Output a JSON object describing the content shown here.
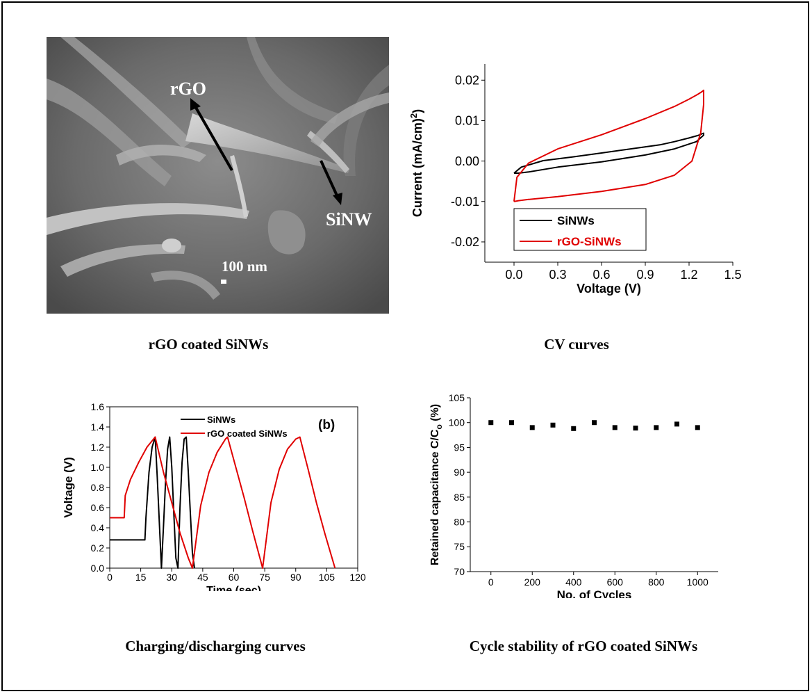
{
  "panels": {
    "sem": {
      "caption": "rGO coated SiNWs",
      "label_rgo": "rGO",
      "label_sinw": "SiNW",
      "scale_label": "100 nm"
    },
    "cv": {
      "caption": "CV curves"
    },
    "gcd": {
      "caption": "Charging/discharging curves"
    },
    "cycle": {
      "caption": "Cycle stability of rGO coated SiNWs"
    }
  },
  "chart_data": [
    {
      "id": "cv",
      "type": "line",
      "xlabel": "Voltage (V)",
      "ylabel": "Current (mA/cm2)",
      "xlim": [
        -0.2,
        1.5
      ],
      "ylim": [
        -0.025,
        0.024
      ],
      "xticks": [
        0.0,
        0.3,
        0.6,
        0.9,
        1.2,
        1.5
      ],
      "xtick_labels": [
        "0.0",
        "0.3",
        "0.6",
        "0.9",
        "1.2",
        "1.5"
      ],
      "yticks": [
        -0.02,
        -0.01,
        0.0,
        0.01,
        0.02
      ],
      "ytick_labels": [
        "-0.02",
        "-0.01",
        "0.00",
        "0.01",
        "0.02"
      ],
      "legend_position": "lower-center",
      "series": [
        {
          "name": "SiNWs",
          "color": "#000000",
          "x": [
            0.0,
            0.05,
            0.2,
            0.4,
            0.6,
            0.8,
            1.0,
            1.1,
            1.2,
            1.26,
            1.3,
            1.3,
            1.25,
            1.1,
            0.9,
            0.6,
            0.3,
            0.1,
            0.03,
            0.0
          ],
          "y": [
            -0.003,
            -0.0015,
            0.0001,
            0.001,
            0.002,
            0.003,
            0.004,
            0.0048,
            0.0057,
            0.0063,
            0.0069,
            0.0064,
            0.0048,
            0.003,
            0.0015,
            -0.0002,
            -0.0015,
            -0.0027,
            -0.003,
            -0.003
          ]
        },
        {
          "name": "rGO-SiNWs",
          "color": "#e00000",
          "x": [
            0.0,
            0.02,
            0.1,
            0.3,
            0.6,
            0.9,
            1.1,
            1.2,
            1.26,
            1.29,
            1.3,
            1.3,
            1.28,
            1.22,
            1.1,
            0.9,
            0.6,
            0.3,
            0.1,
            0.03,
            0.0
          ],
          "y": [
            -0.01,
            -0.004,
            -0.0005,
            0.003,
            0.0065,
            0.0105,
            0.0135,
            0.0153,
            0.0165,
            0.0172,
            0.0175,
            0.014,
            0.007,
            0.0,
            -0.0035,
            -0.0058,
            -0.0075,
            -0.0088,
            -0.0095,
            -0.0098,
            -0.01
          ]
        }
      ]
    },
    {
      "id": "gcd",
      "type": "line",
      "xlabel": "Time (sec)",
      "ylabel": "Voltage (V)",
      "panel_label": "(b)",
      "xlim": [
        0,
        120
      ],
      "ylim": [
        0,
        1.6
      ],
      "xticks": [
        0,
        15,
        30,
        45,
        60,
        75,
        90,
        105,
        120
      ],
      "yticks": [
        0.0,
        0.2,
        0.4,
        0.6,
        0.8,
        1.0,
        1.2,
        1.4,
        1.6
      ],
      "ytick_labels": [
        "0.0",
        "0.2",
        "0.4",
        "0.6",
        "0.8",
        "1.0",
        "1.2",
        "1.4",
        "1.6"
      ],
      "legend_position": "top-center",
      "series": [
        {
          "name": "SiNWs",
          "color": "#000000",
          "x": [
            0,
            17,
            17.5,
            19,
            20.5,
            22,
            23,
            24,
            25,
            26,
            27,
            28,
            29,
            30,
            31,
            32,
            33,
            34,
            35,
            36,
            37,
            38,
            39,
            40,
            41
          ],
          "y": [
            0.28,
            0.28,
            0.5,
            0.95,
            1.2,
            1.3,
            0.9,
            0.45,
            0.0,
            0.42,
            0.85,
            1.18,
            1.3,
            1.0,
            0.55,
            0.1,
            0.0,
            0.6,
            1.05,
            1.28,
            1.3,
            0.95,
            0.55,
            0.15,
            0.0
          ]
        },
        {
          "name": "rGO coated SiNWs",
          "color": "#e00000",
          "x": [
            0,
            7,
            7.5,
            10,
            14,
            18,
            22,
            26,
            30,
            34,
            38,
            40,
            44,
            48,
            52,
            56,
            57,
            61,
            65,
            69,
            74,
            78,
            82,
            86,
            90,
            92,
            96,
            100,
            104,
            109
          ],
          "y": [
            0.5,
            0.5,
            0.72,
            0.88,
            1.05,
            1.2,
            1.3,
            0.95,
            0.65,
            0.35,
            0.1,
            0.0,
            0.62,
            0.95,
            1.15,
            1.28,
            1.3,
            1.0,
            0.7,
            0.38,
            0.0,
            0.65,
            0.98,
            1.18,
            1.28,
            1.3,
            0.98,
            0.65,
            0.35,
            0.0
          ]
        }
      ]
    },
    {
      "id": "cycle",
      "type": "scatter",
      "xlabel": "No. of Cycles",
      "ylabel": "Retained capacitance C/Co (%)",
      "xlim": [
        -100,
        1100
      ],
      "ylim": [
        70,
        105
      ],
      "xticks": [
        0,
        200,
        400,
        600,
        800,
        1000
      ],
      "yticks": [
        70,
        75,
        80,
        85,
        90,
        95,
        100,
        105
      ],
      "series": [
        {
          "name": "",
          "color": "#000000",
          "x": [
            0,
            100,
            200,
            300,
            400,
            500,
            600,
            700,
            800,
            900,
            1000
          ],
          "y": [
            100,
            100,
            99,
            99.5,
            98.8,
            100,
            99,
            98.9,
            99,
            99.7,
            99
          ]
        }
      ]
    }
  ]
}
